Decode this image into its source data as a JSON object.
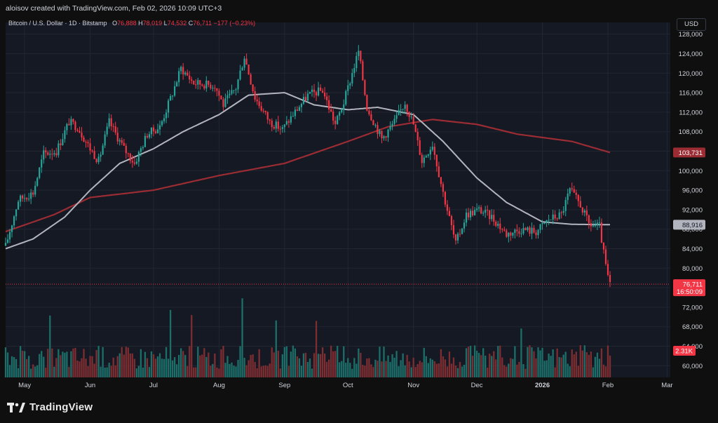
{
  "attribution": "aloisov created with TradingView.com, Feb 02, 2026 10:09 UTC+3",
  "legend": {
    "symbol": "Bitcoin / U.S. Dollar · 1D · Bitstamp",
    "o_label": "O",
    "o_value": "76,888",
    "h_label": "H",
    "h_value": "78,019",
    "l_label": "L",
    "l_value": "74,532",
    "c_label": "C",
    "c_value": "76,711",
    "change": "−177 (−0.23%)"
  },
  "currency": "USD",
  "brand": "TradingView",
  "colors": {
    "background": "#151924",
    "up": "#26a69a",
    "down": "#f23645",
    "ma_short": "#b2b5be",
    "ma_long": "#9b2c33",
    "volume_up": "#1c6f69",
    "volume_down": "#7e2d31"
  },
  "chart_data": {
    "type": "candlestick",
    "timeframe": "1D",
    "x_axis_labels": [
      "May",
      "Jun",
      "Jul",
      "Aug",
      "Sep",
      "Oct",
      "Nov",
      "Dec",
      "2026",
      "Feb",
      "Mar"
    ],
    "y_axis_labels": [
      "128,000",
      "124,000",
      "120,000",
      "116,000",
      "112,000",
      "108,000",
      "104,000",
      "100,000",
      "96,000",
      "92,000",
      "88,000",
      "84,000",
      "80,000",
      "76,000",
      "72,000",
      "68,000",
      "64,000",
      "60,000"
    ],
    "ylim": [
      57600,
      130400
    ],
    "price_path": [
      [
        "2025-04-22",
        84500
      ],
      [
        "2025-04-28",
        94000
      ],
      [
        "2025-05-05",
        95500
      ],
      [
        "2025-05-10",
        103500
      ],
      [
        "2025-05-16",
        104000
      ],
      [
        "2025-05-22",
        110000
      ],
      [
        "2025-05-26",
        109000
      ],
      [
        "2025-06-01",
        104500
      ],
      [
        "2025-06-05",
        102000
      ],
      [
        "2025-06-10",
        110000
      ],
      [
        "2025-06-17",
        104500
      ],
      [
        "2025-06-22",
        101500
      ],
      [
        "2025-06-28",
        107500
      ],
      [
        "2025-07-04",
        109000
      ],
      [
        "2025-07-10",
        116000
      ],
      [
        "2025-07-14",
        121000
      ],
      [
        "2025-07-20",
        118000
      ],
      [
        "2025-07-30",
        117500
      ],
      [
        "2025-08-03",
        113500
      ],
      [
        "2025-08-09",
        117000
      ],
      [
        "2025-08-13",
        123500
      ],
      [
        "2025-08-18",
        115000
      ],
      [
        "2025-08-25",
        110000
      ],
      [
        "2025-08-31",
        108500
      ],
      [
        "2025-09-05",
        111500
      ],
      [
        "2025-09-12",
        115500
      ],
      [
        "2025-09-19",
        116500
      ],
      [
        "2025-09-25",
        109500
      ],
      [
        "2025-09-29",
        114000
      ],
      [
        "2025-10-06",
        124500
      ],
      [
        "2025-10-10",
        113000
      ],
      [
        "2025-10-17",
        106500
      ],
      [
        "2025-10-23",
        110000
      ],
      [
        "2025-10-28",
        114000
      ],
      [
        "2025-11-01",
        109500
      ],
      [
        "2025-11-05",
        102000
      ],
      [
        "2025-11-10",
        105500
      ],
      [
        "2025-11-15",
        95500
      ],
      [
        "2025-11-21",
        85000
      ],
      [
        "2025-11-26",
        91000
      ],
      [
        "2025-12-02",
        92000
      ],
      [
        "2025-12-08",
        90500
      ],
      [
        "2025-12-15",
        87000
      ],
      [
        "2025-12-22",
        88000
      ],
      [
        "2025-12-29",
        87500
      ],
      [
        "2026-01-04",
        90000
      ],
      [
        "2026-01-10",
        91000
      ],
      [
        "2026-01-14",
        96000
      ],
      [
        "2026-01-19",
        93000
      ],
      [
        "2026-01-23",
        89000
      ],
      [
        "2026-01-28",
        88500
      ],
      [
        "2026-01-30",
        83000
      ],
      [
        "2026-02-01",
        78000
      ],
      [
        "2026-02-02",
        76711
      ]
    ],
    "ma_short_path": [
      [
        "2025-04-22",
        84000
      ],
      [
        "2025-05-05",
        86000
      ],
      [
        "2025-05-20",
        90500
      ],
      [
        "2025-06-01",
        96000
      ],
      [
        "2025-06-15",
        101500
      ],
      [
        "2025-07-01",
        104500
      ],
      [
        "2025-07-15",
        108000
      ],
      [
        "2025-08-01",
        111500
      ],
      [
        "2025-08-15",
        115500
      ],
      [
        "2025-09-01",
        116000
      ],
      [
        "2025-09-15",
        113500
      ],
      [
        "2025-10-01",
        112500
      ],
      [
        "2025-10-15",
        113000
      ],
      [
        "2025-11-01",
        111500
      ],
      [
        "2025-11-15",
        106000
      ],
      [
        "2025-12-01",
        98500
      ],
      [
        "2025-12-15",
        93500
      ],
      [
        "2026-01-01",
        89500
      ],
      [
        "2026-01-15",
        89000
      ],
      [
        "2026-02-02",
        88916
      ]
    ],
    "ma_long_path": [
      [
        "2025-04-22",
        87500
      ],
      [
        "2025-05-15",
        91000
      ],
      [
        "2025-06-01",
        94500
      ],
      [
        "2025-07-01",
        96000
      ],
      [
        "2025-08-01",
        99000
      ],
      [
        "2025-09-01",
        101500
      ],
      [
        "2025-10-01",
        106000
      ],
      [
        "2025-10-20",
        109000
      ],
      [
        "2025-11-10",
        110500
      ],
      [
        "2025-12-01",
        109500
      ],
      [
        "2025-12-20",
        107500
      ],
      [
        "2026-01-15",
        106000
      ],
      [
        "2026-02-02",
        103731
      ]
    ],
    "price_labels": {
      "ma_long": "103,731",
      "ma_short": "88,916",
      "last_price": "76,711",
      "countdown": "16:50:09",
      "volume": "2.31K"
    }
  }
}
